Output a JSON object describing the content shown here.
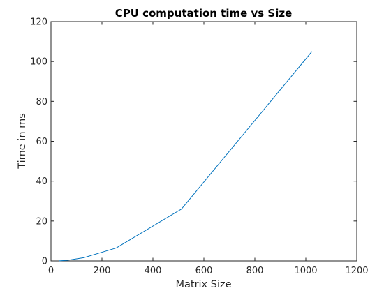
{
  "chart_data": {
    "type": "line",
    "title": "CPU computation time vs Size",
    "xlabel": "Matrix Size",
    "ylabel": "Time in ms",
    "xlim": [
      0,
      1200
    ],
    "ylim": [
      0,
      120
    ],
    "xticks": [
      0,
      200,
      400,
      600,
      800,
      1000,
      1200
    ],
    "yticks": [
      0,
      20,
      40,
      60,
      80,
      100,
      120
    ],
    "grid": false,
    "box": true,
    "series": [
      {
        "color": "#0072bd",
        "x": [
          32,
          64,
          128,
          256,
          512,
          1024
        ],
        "y": [
          0.05,
          0.3,
          1.6,
          6.5,
          26.0,
          105.0
        ]
      }
    ]
  },
  "colors": {
    "axis": "#262626",
    "line": "#0072bd"
  }
}
